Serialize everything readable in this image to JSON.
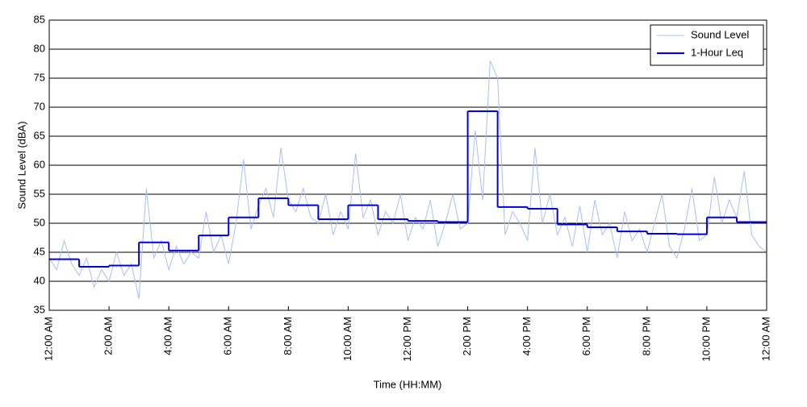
{
  "chart_data": {
    "type": "line",
    "xlabel": "Time (HH:MM)",
    "ylabel": "Sound Level (dBA)",
    "xlim": [
      0,
      24
    ],
    "ylim": [
      35,
      85
    ],
    "yticks": [
      35,
      40,
      45,
      50,
      55,
      60,
      65,
      70,
      75,
      80,
      85
    ],
    "xticks": [
      {
        "value": 0,
        "label": "12:00 AM"
      },
      {
        "value": 2,
        "label": "2:00 AM"
      },
      {
        "value": 4,
        "label": "4:00 AM"
      },
      {
        "value": 6,
        "label": "6:00 AM"
      },
      {
        "value": 8,
        "label": "8:00 AM"
      },
      {
        "value": 10,
        "label": "10:00 AM"
      },
      {
        "value": 12,
        "label": "12:00 PM"
      },
      {
        "value": 14,
        "label": "2:00 PM"
      },
      {
        "value": 16,
        "label": "4:00 PM"
      },
      {
        "value": 18,
        "label": "6:00 PM"
      },
      {
        "value": 20,
        "label": "8:00 PM"
      },
      {
        "value": 22,
        "label": "10:00 PM"
      },
      {
        "value": 24,
        "label": "12:00 AM"
      }
    ],
    "grid": true,
    "legend": "top-right",
    "series": [
      {
        "name": "Sound Level",
        "color": "#a8c0f0",
        "step": false,
        "x": [
          0,
          0.25,
          0.5,
          0.75,
          1,
          1.25,
          1.5,
          1.75,
          2,
          2.25,
          2.5,
          2.75,
          3,
          3.25,
          3.5,
          3.75,
          4,
          4.25,
          4.5,
          4.75,
          5,
          5.25,
          5.5,
          5.75,
          6,
          6.25,
          6.5,
          6.75,
          7,
          7.25,
          7.5,
          7.75,
          8,
          8.25,
          8.5,
          8.75,
          9,
          9.25,
          9.5,
          9.75,
          10,
          10.25,
          10.5,
          10.75,
          11,
          11.25,
          11.5,
          11.75,
          12,
          12.25,
          12.5,
          12.75,
          13,
          13.25,
          13.5,
          13.75,
          14,
          14.25,
          14.5,
          14.75,
          15,
          15.25,
          15.5,
          15.75,
          16,
          16.25,
          16.5,
          16.75,
          17,
          17.25,
          17.5,
          17.75,
          18,
          18.25,
          18.5,
          18.75,
          19,
          19.25,
          19.5,
          19.75,
          20,
          20.25,
          20.5,
          20.75,
          21,
          21.25,
          21.5,
          21.75,
          22,
          22.25,
          22.5,
          22.75,
          23,
          23.25,
          23.5,
          23.75,
          24
        ],
        "values": [
          44,
          42,
          47,
          43,
          41,
          44,
          39,
          42,
          40,
          45,
          41,
          43,
          37,
          56,
          44,
          47,
          42,
          46,
          43,
          45,
          44,
          52,
          45,
          48,
          43,
          50,
          61,
          49,
          53,
          56,
          51,
          63,
          54,
          52,
          56,
          51,
          50,
          55,
          48,
          52,
          49,
          62,
          51,
          54,
          48,
          52,
          50,
          55,
          47,
          51,
          49,
          54,
          46,
          50,
          55,
          49,
          50,
          66,
          54,
          78,
          75,
          48,
          52,
          50,
          47,
          63,
          50,
          55,
          48,
          51,
          46,
          53,
          45,
          54,
          48,
          50,
          44,
          52,
          47,
          49,
          45,
          50,
          55,
          46,
          44,
          49,
          56,
          47,
          48,
          58,
          50,
          54,
          51,
          59,
          48,
          46,
          45
        ]
      },
      {
        "name": "1-Hour Leq",
        "color": "#0000e0",
        "step": true,
        "x": [
          0,
          1,
          2,
          3,
          4,
          5,
          6,
          7,
          8,
          9,
          10,
          11,
          12,
          13,
          14,
          15,
          16,
          17,
          18,
          19,
          20,
          21,
          22,
          23
        ],
        "values": [
          43.8,
          42.5,
          42.7,
          46.7,
          45.3,
          47.9,
          51.0,
          54.3,
          53.1,
          50.7,
          53.1,
          50.7,
          50.4,
          50.2,
          69.3,
          52.8,
          52.5,
          49.8,
          49.3,
          48.6,
          48.2,
          48.1,
          51.0,
          50.2
        ]
      }
    ]
  }
}
